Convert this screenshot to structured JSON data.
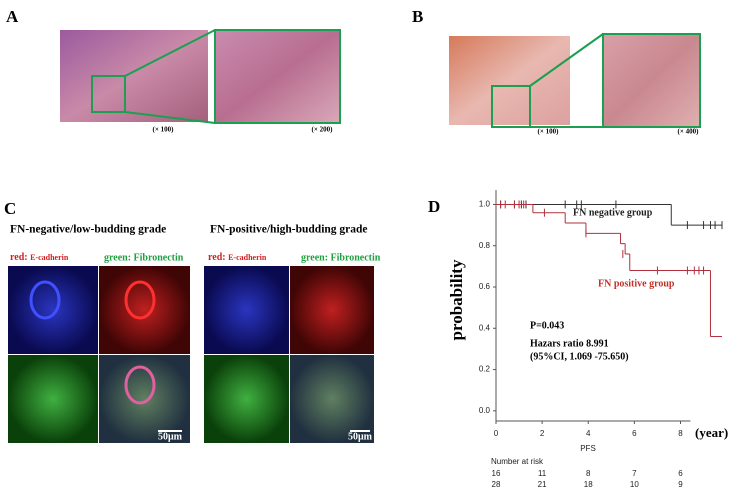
{
  "panels": {
    "a": {
      "label": "A",
      "mag_small": "(× 100)",
      "mag_zoom": "(× 200)"
    },
    "b": {
      "label": "B",
      "mag_small": "(× 100)",
      "mag_zoom": "(× 400)"
    },
    "c": {
      "label": "C",
      "left": {
        "title": "FN-negative/low-budding grade",
        "red": "red:",
        "red_marker": "E-cadherin",
        "green": "green: Fibronectin",
        "scale": "50μm"
      },
      "right": {
        "title": "FN-positive/high-budding grade",
        "red": "red:",
        "red_marker": "E-cadherin",
        "green": "green: Fibronectin",
        "scale": "50μm"
      }
    },
    "d": {
      "label": "D"
    }
  },
  "chart_data": {
    "type": "step",
    "ylabel": "probability",
    "xlabel": "PFS",
    "x_unit": "(year)",
    "xlim": [
      0,
      9.8
    ],
    "ylim": [
      -0.03,
      1.07
    ],
    "xticks": [
      0,
      2,
      4,
      6,
      8
    ],
    "yticks": [
      {
        "value": 0,
        "label": "0.0"
      },
      {
        "value": 0.2,
        "label": "0.2"
      },
      {
        "value": 0.4,
        "label": "0.4"
      },
      {
        "value": 0.6,
        "label": "0.6"
      },
      {
        "value": 0.8,
        "label": "0.8"
      },
      {
        "value": 1,
        "label": "1.0"
      }
    ],
    "series": [
      {
        "name": "FN negative group",
        "color": "#333333",
        "x": [
          0,
          7.6,
          9.8
        ],
        "values": [
          1,
          0.9,
          0.9
        ],
        "censor_x": [
          0.2,
          0.8,
          1.1,
          1.3,
          3.0,
          3.5,
          3.7,
          5.2,
          8.3,
          9.0,
          9.3,
          9.5,
          9.8
        ],
        "censor_values": [
          1,
          1,
          1,
          1,
          1,
          1,
          1,
          1,
          0.9,
          0.9,
          0.9,
          0.9,
          0.9
        ]
      },
      {
        "name": "FN positive group",
        "color": "#b0303c",
        "x": [
          0,
          1.6,
          3.0,
          3.9,
          5.4,
          5.6,
          5.8,
          9.3,
          9.8
        ],
        "values": [
          1,
          0.96,
          0.91,
          0.86,
          0.81,
          0.76,
          0.68,
          0.36,
          0.36
        ],
        "censor_x": [
          0.2,
          0.4,
          0.8,
          1.0,
          1.2,
          2.1,
          3.9,
          5.5,
          7.0,
          8.3,
          8.6,
          8.8,
          9.0
        ],
        "censor_values": [
          1,
          1,
          1,
          1,
          1,
          0.96,
          0.86,
          0.76,
          0.68,
          0.68,
          0.68,
          0.68,
          0.68
        ]
      }
    ],
    "annotations": [
      "P=0.043",
      "Hazars ratio 8.991",
      "(95%CI, 1.069 -75.650)"
    ],
    "risk_table": {
      "title": "Number at risk",
      "rows": [
        [
          16,
          11,
          8,
          7,
          6
        ],
        [
          28,
          21,
          18,
          10,
          9
        ]
      ]
    }
  }
}
